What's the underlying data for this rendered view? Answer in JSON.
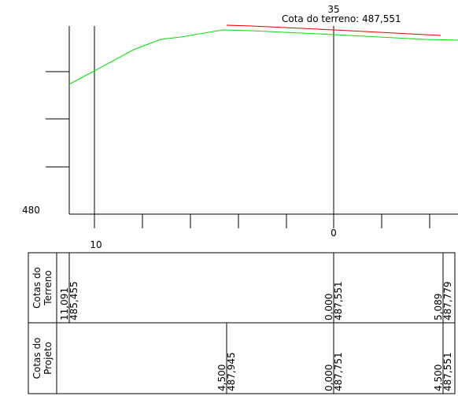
{
  "profile": {
    "station": "35",
    "cota_terreno": "Cota do terreno: 487,551",
    "y_label": "480",
    "x_labels": [
      "10",
      "0"
    ]
  },
  "table": {
    "rows": [
      {
        "header": [
          "Cotas do",
          "Terreno"
        ],
        "columns": [
          [
            "11,091",
            "485,455"
          ],
          [
            "0,000",
            "487,551"
          ],
          [
            "5,089",
            "487,779"
          ]
        ]
      },
      {
        "header": [
          "Cotas do",
          "Projeto"
        ],
        "columns": [
          [
            "4,500",
            "487,945"
          ],
          [
            "0,000",
            "487,751"
          ],
          [
            "4,500",
            "487,551"
          ]
        ]
      }
    ]
  }
}
